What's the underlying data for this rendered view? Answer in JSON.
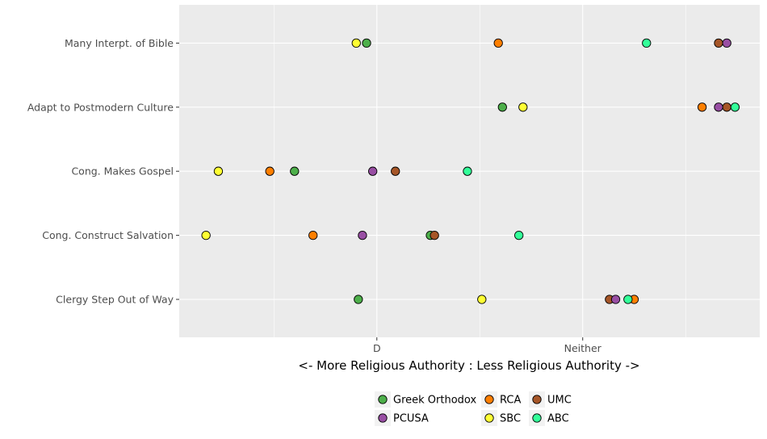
{
  "chart_data": {
    "type": "scatter",
    "title": "",
    "xlabel": "<- More Religious Authority : Less Religious Authority ->",
    "ylabel": "",
    "x_ticks": [
      {
        "value": 2,
        "label": "D"
      },
      {
        "value": 3,
        "label": "Neither"
      }
    ],
    "xlim": [
      1.04,
      3.86
    ],
    "grid": true,
    "legend_position": "bottom",
    "categories": [
      "Clergy Step Out of Way",
      "Cong. Construct Salvation",
      "Cong. Makes Gospel",
      "Adapt to Postmodern Culture",
      "Many Interpt. of Bible"
    ],
    "series": [
      {
        "name": "Greek Orthodox",
        "color": "#4daf4a",
        "points": [
          {
            "category": "Many Interpt. of Bible",
            "x": 1.95
          },
          {
            "category": "Adapt to Postmodern Culture",
            "x": 2.61
          },
          {
            "category": "Cong. Makes Gospel",
            "x": 1.6
          },
          {
            "category": "Cong. Construct Salvation",
            "x": 2.26
          },
          {
            "category": "Clergy Step Out of Way",
            "x": 1.91
          }
        ]
      },
      {
        "name": "RCA",
        "color": "#ff7f00",
        "points": [
          {
            "category": "Many Interpt. of Bible",
            "x": 2.59
          },
          {
            "category": "Adapt to Postmodern Culture",
            "x": 3.58
          },
          {
            "category": "Cong. Makes Gospel",
            "x": 1.48
          },
          {
            "category": "Cong. Construct Salvation",
            "x": 1.69
          },
          {
            "category": "Clergy Step Out of Way",
            "x": 3.25
          }
        ]
      },
      {
        "name": "UMC",
        "color": "#a65628",
        "points": [
          {
            "category": "Many Interpt. of Bible",
            "x": 3.66
          },
          {
            "category": "Adapt to Postmodern Culture",
            "x": 3.7
          },
          {
            "category": "Cong. Makes Gospel",
            "x": 2.09
          },
          {
            "category": "Cong. Construct Salvation",
            "x": 2.28
          },
          {
            "category": "Clergy Step Out of Way",
            "x": 3.13
          }
        ]
      },
      {
        "name": "PCUSA",
        "color": "#984ea3",
        "points": [
          {
            "category": "Many Interpt. of Bible",
            "x": 3.7
          },
          {
            "category": "Adapt to Postmodern Culture",
            "x": 3.66
          },
          {
            "category": "Cong. Makes Gospel",
            "x": 1.98
          },
          {
            "category": "Cong. Construct Salvation",
            "x": 1.93
          },
          {
            "category": "Clergy Step Out of Way",
            "x": 3.16
          }
        ]
      },
      {
        "name": "SBC",
        "color": "#ffff33",
        "points": [
          {
            "category": "Many Interpt. of Bible",
            "x": 1.9
          },
          {
            "category": "Adapt to Postmodern Culture",
            "x": 2.71
          },
          {
            "category": "Cong. Makes Gospel",
            "x": 1.23
          },
          {
            "category": "Cong. Construct Salvation",
            "x": 1.17
          },
          {
            "category": "Clergy Step Out of Way",
            "x": 2.51
          }
        ]
      },
      {
        "name": "ABC",
        "color": "#33ff99",
        "points": [
          {
            "category": "Many Interpt. of Bible",
            "x": 3.31
          },
          {
            "category": "Adapt to Postmodern Culture",
            "x": 3.74
          },
          {
            "category": "Cong. Makes Gospel",
            "x": 2.44
          },
          {
            "category": "Cong. Construct Salvation",
            "x": 2.69
          },
          {
            "category": "Clergy Step Out of Way",
            "x": 3.22
          }
        ]
      }
    ],
    "legend_order": [
      "Greek Orthodox",
      "RCA",
      "UMC",
      "PCUSA",
      "SBC",
      "ABC"
    ]
  }
}
